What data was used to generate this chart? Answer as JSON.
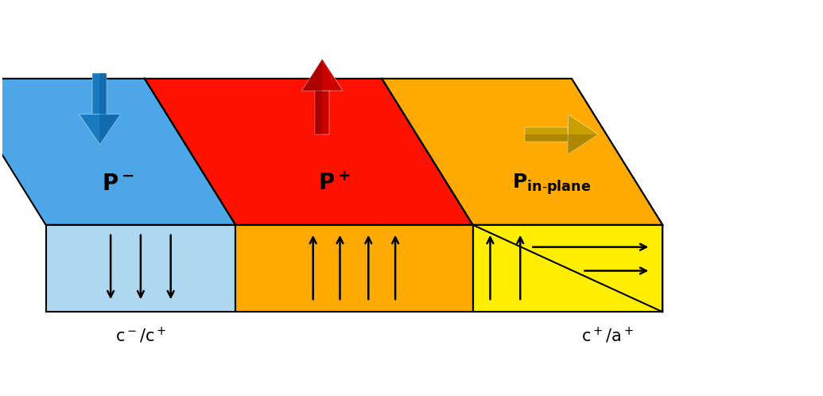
{
  "bg_color": "#ffffff",
  "arrow_blue_color": "#1a7abf",
  "arrow_red_color": "#cc0000",
  "arrow_gold_color": "#c8a000",
  "arrow_gold_fill": "#d4aa00",
  "blue_top": "#4da6e8",
  "blue_front": "#add8f0",
  "red_top": "#ff1100",
  "orange_top": "#ffaa00",
  "orange_front": "#ffaa00",
  "yellow_front": "#ffee00",
  "red_side": "#dd1100",
  "bottom_left_label": "c⁻/c⁺",
  "bottom_right_label": "c⁺/a⁺"
}
